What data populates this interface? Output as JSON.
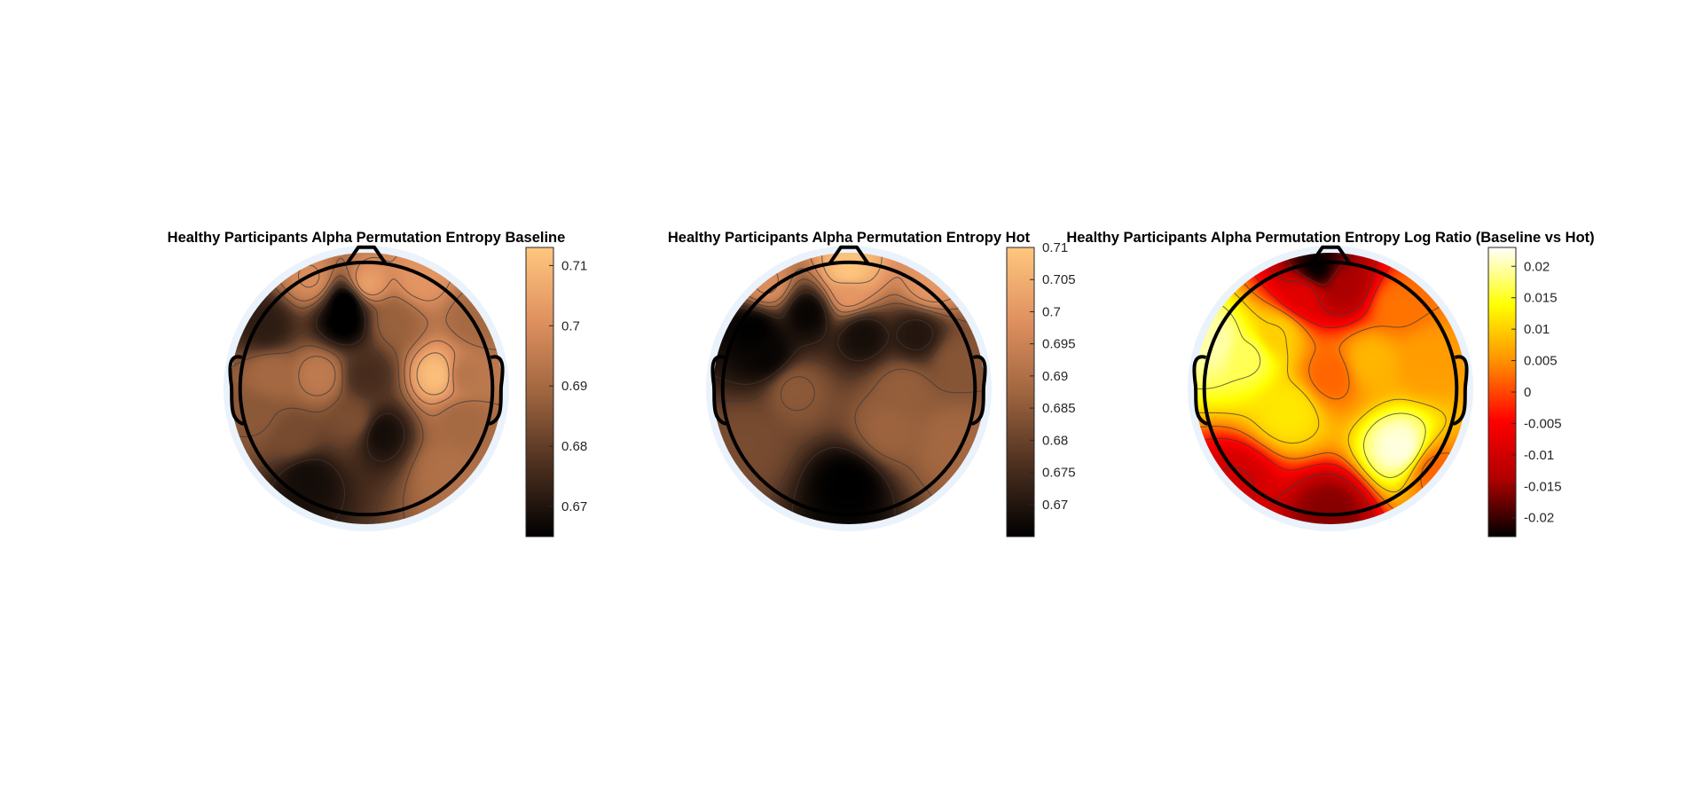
{
  "chart_data": [
    {
      "type": "heatmap",
      "subtype": "eeg-topoplot",
      "title": "Healthy Participants Alpha Permutation Entropy Baseline",
      "colormap": "copper",
      "colormap_stops": [
        "#000000",
        "#4d3020",
        "#a06640",
        "#e09160",
        "#ffc77f"
      ],
      "clim": [
        0.665,
        0.713
      ],
      "colorbar_ticks": [
        {
          "value": 0.71,
          "label": "0.71"
        },
        {
          "value": 0.7,
          "label": "0.7"
        },
        {
          "value": 0.69,
          "label": "0.69"
        },
        {
          "value": 0.68,
          "label": "0.68"
        },
        {
          "value": 0.67,
          "label": "0.67"
        }
      ],
      "sources": [
        {
          "u": 0.43,
          "v": 0.18,
          "value": 0.662
        },
        {
          "u": 0.33,
          "v": 0.45,
          "value": 0.695
        },
        {
          "u": 0.13,
          "v": 0.27,
          "value": 0.672
        },
        {
          "u": 0.28,
          "v": 0.83,
          "value": 0.668
        },
        {
          "u": 0.46,
          "v": 0.62,
          "value": 0.684
        },
        {
          "u": 0.5,
          "v": 0.45,
          "value": 0.676
        },
        {
          "u": 0.55,
          "v": 0.66,
          "value": 0.668
        },
        {
          "u": 0.23,
          "v": 0.68,
          "value": 0.683
        },
        {
          "u": 0.77,
          "v": 0.45,
          "value": 0.712
        },
        {
          "u": 0.6,
          "v": 0.25,
          "value": 0.688
        },
        {
          "u": 0.42,
          "v": 0.25,
          "value": 0.664
        },
        {
          "u": 0.85,
          "v": 0.62,
          "value": 0.69
        },
        {
          "u": 0.9,
          "v": 0.25,
          "value": 0.69
        },
        {
          "u": 0.8,
          "v": 0.8,
          "value": 0.692
        },
        {
          "u": 0.5,
          "v": 0.12,
          "value": 0.705
        },
        {
          "u": 0.3,
          "v": 0.1,
          "value": 0.7
        },
        {
          "u": 0.7,
          "v": 0.1,
          "value": 0.702
        },
        {
          "u": 0.1,
          "v": 0.6,
          "value": 0.686
        },
        {
          "u": 0.15,
          "v": 0.45,
          "value": 0.69
        },
        {
          "u": 0.85,
          "v": 0.45,
          "value": 0.693
        }
      ]
    },
    {
      "type": "heatmap",
      "subtype": "eeg-topoplot",
      "title": "Healthy Participants Alpha Permutation Entropy Hot",
      "colormap": "copper",
      "colormap_stops": [
        "#000000",
        "#4d3020",
        "#a06640",
        "#e09160",
        "#ffc77f"
      ],
      "clim": [
        0.665,
        0.71
      ],
      "colorbar_ticks": [
        {
          "value": 0.71,
          "label": "0.71"
        },
        {
          "value": 0.705,
          "label": "0.705"
        },
        {
          "value": 0.7,
          "label": "0.7"
        },
        {
          "value": 0.695,
          "label": "0.695"
        },
        {
          "value": 0.69,
          "label": "0.69"
        },
        {
          "value": 0.685,
          "label": "0.685"
        },
        {
          "value": 0.68,
          "label": "0.68"
        },
        {
          "value": 0.675,
          "label": "0.675"
        },
        {
          "value": 0.67,
          "label": "0.67"
        }
      ],
      "sources": [
        {
          "u": 0.5,
          "v": 0.85,
          "value": 0.665
        },
        {
          "u": 0.3,
          "v": 0.5,
          "value": 0.685
        },
        {
          "u": 0.7,
          "v": 0.5,
          "value": 0.686
        },
        {
          "u": 0.15,
          "v": 0.28,
          "value": 0.665
        },
        {
          "u": 0.35,
          "v": 0.22,
          "value": 0.666
        },
        {
          "u": 0.55,
          "v": 0.3,
          "value": 0.668
        },
        {
          "u": 0.75,
          "v": 0.3,
          "value": 0.67
        },
        {
          "u": 0.2,
          "v": 0.38,
          "value": 0.666
        },
        {
          "u": 0.5,
          "v": 0.15,
          "value": 0.7
        },
        {
          "u": 0.5,
          "v": 0.07,
          "value": 0.71
        },
        {
          "u": 0.2,
          "v": 0.12,
          "value": 0.698
        },
        {
          "u": 0.8,
          "v": 0.12,
          "value": 0.7
        },
        {
          "u": 0.12,
          "v": 0.7,
          "value": 0.682
        },
        {
          "u": 0.88,
          "v": 0.7,
          "value": 0.688
        },
        {
          "u": 0.9,
          "v": 0.4,
          "value": 0.684
        },
        {
          "u": 0.65,
          "v": 0.65,
          "value": 0.687
        }
      ]
    },
    {
      "type": "heatmap",
      "subtype": "eeg-topoplot",
      "title": "Healthy Participants Alpha Permutation Entropy Log Ratio (Baseline vs Hot)",
      "colormap": "hot",
      "colormap_stops": [
        "#000000",
        "#b00000",
        "#ff0000",
        "#ff8c00",
        "#ffff00",
        "#ffffff"
      ],
      "clim": [
        -0.023,
        0.023
      ],
      "colorbar_ticks": [
        {
          "value": 0.02,
          "label": "0.02"
        },
        {
          "value": 0.015,
          "label": "0.015"
        },
        {
          "value": 0.01,
          "label": "0.01"
        },
        {
          "value": 0.005,
          "label": "0.005"
        },
        {
          "value": 0.0,
          "label": "0"
        },
        {
          "value": -0.005,
          "label": "-0.005"
        },
        {
          "value": -0.01,
          "label": "-0.01"
        },
        {
          "value": -0.015,
          "label": "-0.015"
        },
        {
          "value": -0.02,
          "label": "-0.02"
        }
      ],
      "sources": [
        {
          "u": 0.76,
          "v": 0.72,
          "value": 0.022
        },
        {
          "u": 0.2,
          "v": 0.38,
          "value": 0.017
        },
        {
          "u": 0.07,
          "v": 0.33,
          "value": 0.02
        },
        {
          "u": 0.35,
          "v": 0.58,
          "value": 0.012
        },
        {
          "u": 0.5,
          "v": 0.45,
          "value": 0.002
        },
        {
          "u": 0.45,
          "v": 0.06,
          "value": -0.023
        },
        {
          "u": 0.55,
          "v": 0.12,
          "value": -0.014
        },
        {
          "u": 0.4,
          "v": 0.15,
          "value": -0.008
        },
        {
          "u": 0.5,
          "v": 0.96,
          "value": -0.016
        },
        {
          "u": 0.15,
          "v": 0.85,
          "value": -0.01
        },
        {
          "u": 0.88,
          "v": 0.8,
          "value": 0.002
        },
        {
          "u": 0.65,
          "v": 0.4,
          "value": 0.008
        },
        {
          "u": 0.85,
          "v": 0.4,
          "value": 0.006
        },
        {
          "u": 0.3,
          "v": 0.3,
          "value": 0.01
        },
        {
          "u": 0.75,
          "v": 0.2,
          "value": 0.003
        }
      ]
    }
  ]
}
